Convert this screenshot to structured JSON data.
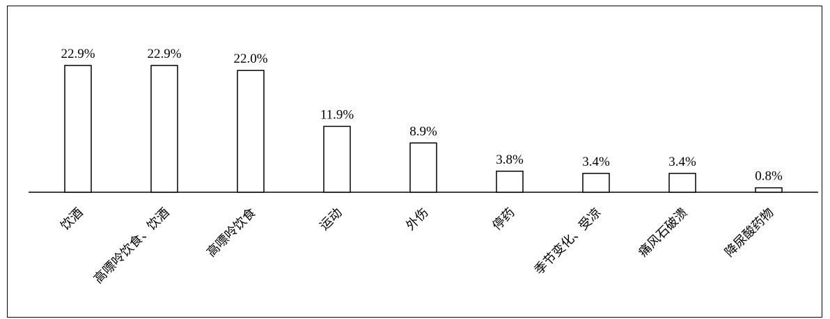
{
  "chart_data": {
    "type": "bar",
    "categories": [
      "饮酒",
      "高嘌呤饮食、饮酒",
      "高嘌呤饮食",
      "运动",
      "外伤",
      "停药",
      "季节变化、受凉",
      "痛风石破溃",
      "降尿酸药物"
    ],
    "values": [
      22.9,
      22.9,
      22.0,
      11.9,
      8.9,
      3.8,
      3.4,
      3.4,
      0.8
    ],
    "value_labels": [
      "22.9%",
      "22.9%",
      "22.0%",
      "11.9%",
      "8.9%",
      "3.8%",
      "3.4%",
      "3.4%",
      "0.8%"
    ],
    "ylim": [
      0,
      22.9
    ],
    "grid": false,
    "bar_fill": "#ffffff",
    "bar_stroke": "#000000"
  }
}
